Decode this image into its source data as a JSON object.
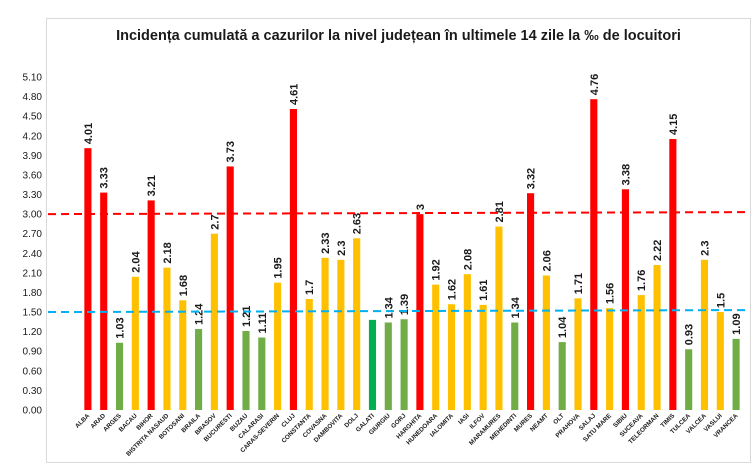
{
  "chart_data": {
    "type": "bar",
    "title": "Incidența cumulată a cazurilor la nivel județean în ultimele 14 zile la ‰ de locuitori",
    "xlabel": "",
    "ylabel": "",
    "ylim": [
      0,
      5.1
    ],
    "yticks": [
      "5.10",
      "4.80",
      "4.50",
      "4.20",
      "3.90",
      "3.60",
      "3.30",
      "3.00",
      "2.70",
      "2.40",
      "2.10",
      "1.80",
      "1.50",
      "1.20",
      "0.90",
      "0.60",
      "0.30",
      "0.00"
    ],
    "grid": false,
    "legend": "none",
    "colors": {
      "red": "#ff0000",
      "yellow": "#ffc000",
      "green": "#70ad47",
      "dark_green": "#00b050",
      "red_line": "#ff0000",
      "blue_line": "#00b0f0"
    },
    "reference_lines": [
      {
        "value": 3.0,
        "color": "#ff0000"
      },
      {
        "value": 1.5,
        "color": "#00b0f0"
      }
    ],
    "categories": [
      "ALBA",
      "ARAD",
      "ARGES",
      "BACAU",
      "BIHOR",
      "BISTRITA NASAUD",
      "BOTOSANI",
      "BRAILA",
      "BRASOV",
      "BUCURESTI",
      "BUZAU",
      "CALARASI",
      "CARAS-SEVERIN",
      "CLUJ",
      "CONSTANTA",
      "COVASNA",
      "DAMBOVITA",
      "DOLJ",
      "GALATI",
      "GIURGIU",
      "GORJ",
      "HARGHITA",
      "HUNEDOARA",
      "IALOMITA",
      "IASI",
      "ILFOV",
      "MARAMURES",
      "MEHEDINTI",
      "MURES",
      "NEAMT",
      "OLT",
      "PRAHOVA",
      "SALAJ",
      "SATU MARE",
      "SIBIU",
      "SUCEAVA",
      "TELEORMAN",
      "TIMIS",
      "TULCEA",
      "VALCEA",
      "VASLUI",
      "VRANCEA"
    ],
    "values": [
      4.01,
      3.33,
      1.03,
      2.04,
      3.21,
      2.18,
      1.68,
      1.24,
      2.7,
      3.73,
      1.21,
      1.11,
      1.95,
      4.61,
      1.7,
      2.33,
      2.3,
      2.63,
      1.38,
      1.34,
      1.39,
      3,
      1.92,
      1.62,
      2.08,
      1.61,
      2.81,
      1.34,
      3.32,
      2.06,
      1.04,
      1.71,
      4.76,
      1.56,
      3.38,
      1.76,
      2.22,
      4.15,
      0.93,
      2.3,
      1.5,
      1.09
    ],
    "data_labels": [
      "4.01",
      "3.33",
      "1.03",
      "2.04",
      "3.21",
      "2.18",
      "1.68",
      "1.24",
      "2.7",
      "3.73",
      "1.21",
      "1.11",
      "1.95",
      "4.61",
      "1.7",
      "2.33",
      "2.3",
      "2.63",
      "",
      "1.34",
      "1.39",
      "3",
      "1.92",
      "1.62",
      "2.08",
      "1.61",
      "2.81",
      "1.34",
      "3.32",
      "2.06",
      "1.04",
      "1.71",
      "4.76",
      "1.56",
      "3.38",
      "1.76",
      "2.22",
      "4.15",
      "0.93",
      "2.3",
      "1.5",
      "1.09"
    ],
    "bar_colors": [
      "red",
      "red",
      "green",
      "yellow",
      "red",
      "yellow",
      "yellow",
      "green",
      "yellow",
      "red",
      "green",
      "green",
      "yellow",
      "red",
      "yellow",
      "yellow",
      "yellow",
      "yellow",
      "dark_green",
      "green",
      "green",
      "red",
      "yellow",
      "yellow",
      "yellow",
      "yellow",
      "yellow",
      "green",
      "red",
      "yellow",
      "green",
      "yellow",
      "red",
      "yellow",
      "red",
      "yellow",
      "yellow",
      "red",
      "green",
      "yellow",
      "yellow",
      "green"
    ]
  }
}
